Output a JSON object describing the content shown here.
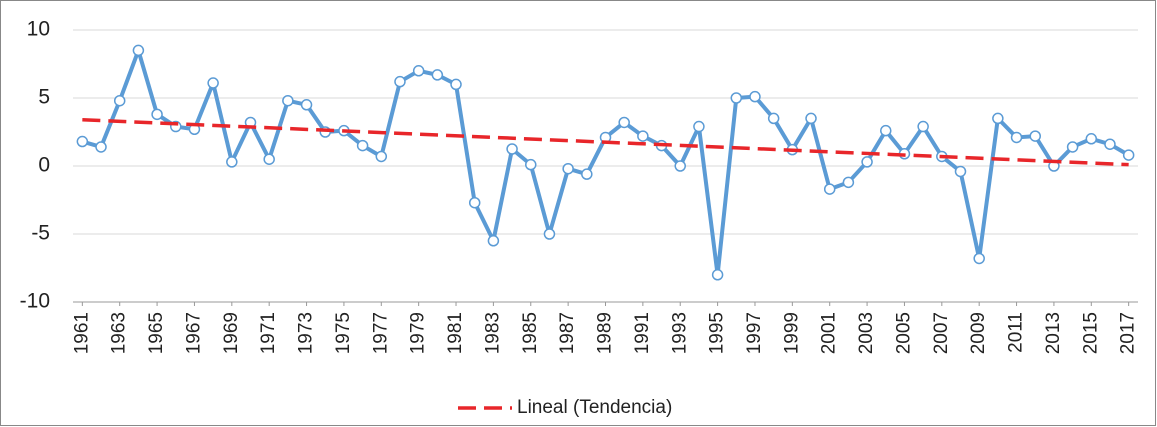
{
  "chart_data": {
    "type": "line",
    "x": [
      1961,
      1962,
      1963,
      1964,
      1965,
      1966,
      1967,
      1968,
      1969,
      1970,
      1971,
      1972,
      1973,
      1974,
      1975,
      1976,
      1977,
      1978,
      1979,
      1980,
      1981,
      1982,
      1983,
      1984,
      1985,
      1986,
      1987,
      1988,
      1989,
      1990,
      1991,
      1992,
      1993,
      1994,
      1995,
      1996,
      1997,
      1998,
      1999,
      2000,
      2001,
      2002,
      2003,
      2004,
      2005,
      2006,
      2007,
      2008,
      2009,
      2010,
      2011,
      2012,
      2013,
      2014,
      2015,
      2016,
      2017
    ],
    "series": [
      {
        "color": "#5b9bd5",
        "values": [
          1.8,
          1.4,
          4.8,
          8.5,
          3.8,
          2.9,
          2.7,
          6.1,
          0.3,
          3.2,
          0.5,
          4.8,
          4.5,
          2.5,
          2.6,
          1.5,
          0.7,
          6.2,
          7.0,
          6.7,
          6.0,
          -2.7,
          -5.5,
          1.25,
          0.1,
          -5.0,
          -0.2,
          -0.6,
          2.1,
          3.2,
          2.2,
          1.5,
          0.0,
          2.9,
          -8.0,
          5.0,
          5.1,
          3.5,
          1.2,
          3.5,
          -1.7,
          -1.2,
          0.3,
          2.6,
          0.9,
          2.9,
          0.7,
          -0.4,
          -6.8,
          3.5,
          2.1,
          2.2,
          0.0,
          1.4,
          2.0,
          1.6,
          0.8
        ]
      }
    ],
    "trend": {
      "name": "Lineal (Tendencia)",
      "color": "#e8262a",
      "x": [
        1961,
        2017
      ],
      "values": [
        3.4,
        0.1
      ]
    },
    "xlim": [
      1960.5,
      2017.5
    ],
    "xticks": [
      1961,
      1963,
      1965,
      1967,
      1969,
      1971,
      1973,
      1975,
      1977,
      1979,
      1981,
      1983,
      1985,
      1987,
      1989,
      1991,
      1993,
      1995,
      1997,
      1999,
      2001,
      2003,
      2005,
      2007,
      2009,
      2011,
      2013,
      2015,
      2017
    ],
    "ylim": [
      -10,
      10
    ],
    "yticks": [
      -10,
      -5,
      0,
      5,
      10
    ],
    "grid": true,
    "legend": "bottom"
  }
}
